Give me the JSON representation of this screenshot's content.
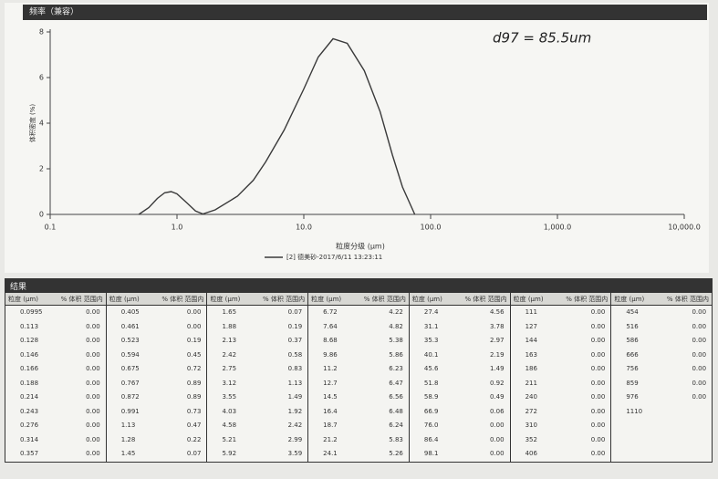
{
  "chart_data": {
    "type": "line",
    "title": "频率（兼容）",
    "ylabel": "体积密度 (%)",
    "xlabel": "粒度分级 (μm)",
    "annotation": "d97 = 85.5um",
    "xlog": true,
    "xlim": [
      0.1,
      10000
    ],
    "xticks": [
      0.1,
      {
        "value": 1,
        "label": "1.0"
      },
      {
        "value": 10,
        "label": "10.0"
      },
      {
        "value": 100,
        "label": "100.0"
      },
      {
        "value": 1000,
        "label": "1,000.0"
      },
      {
        "value": 10000,
        "label": "10,000.0"
      }
    ],
    "ylim": [
      0,
      8
    ],
    "yticks": [
      0,
      2,
      4,
      6,
      8
    ],
    "x": [
      0.5,
      0.6,
      0.7,
      0.8,
      0.9,
      1.0,
      1.2,
      1.4,
      1.6,
      2,
      3,
      4,
      5,
      7,
      10,
      13,
      17,
      22,
      30,
      40,
      50,
      60,
      75
    ],
    "series": [
      {
        "name": "[2] 德美砂-2017/6/11 13:23:11",
        "color": "#3a3a3a",
        "values": [
          0,
          0.3,
          0.7,
          0.95,
          1.0,
          0.9,
          0.5,
          0.15,
          0.02,
          0.2,
          0.8,
          1.5,
          2.3,
          3.7,
          5.5,
          6.9,
          7.7,
          7.5,
          6.3,
          4.5,
          2.6,
          1.2,
          0
        ]
      }
    ]
  },
  "table": {
    "title": "结果",
    "headers": [
      "粒度 (μm)",
      "% 体积 范围内"
    ],
    "columns": [
      [
        [
          "0.0995",
          "0.00"
        ],
        [
          "0.113",
          "0.00"
        ],
        [
          "0.128",
          "0.00"
        ],
        [
          "0.146",
          "0.00"
        ],
        [
          "0.166",
          "0.00"
        ],
        [
          "0.188",
          "0.00"
        ],
        [
          "0.214",
          "0.00"
        ],
        [
          "0.243",
          "0.00"
        ],
        [
          "0.276",
          "0.00"
        ],
        [
          "0.314",
          "0.00"
        ],
        [
          "0.357",
          "0.00"
        ]
      ],
      [
        [
          "0.405",
          "0.00"
        ],
        [
          "0.461",
          "0.00"
        ],
        [
          "0.523",
          "0.19"
        ],
        [
          "0.594",
          "0.45"
        ],
        [
          "0.675",
          "0.72"
        ],
        [
          "0.767",
          "0.89"
        ],
        [
          "0.872",
          "0.89"
        ],
        [
          "0.991",
          "0.73"
        ],
        [
          "1.13",
          "0.47"
        ],
        [
          "1.28",
          "0.22"
        ],
        [
          "1.45",
          "0.07"
        ]
      ],
      [
        [
          "1.65",
          "0.07"
        ],
        [
          "1.88",
          "0.19"
        ],
        [
          "2.13",
          "0.37"
        ],
        [
          "2.42",
          "0.58"
        ],
        [
          "2.75",
          "0.83"
        ],
        [
          "3.12",
          "1.13"
        ],
        [
          "3.55",
          "1.49"
        ],
        [
          "4.03",
          "1.92"
        ],
        [
          "4.58",
          "2.42"
        ],
        [
          "5.21",
          "2.99"
        ],
        [
          "5.92",
          "3.59"
        ]
      ],
      [
        [
          "6.72",
          "4.22"
        ],
        [
          "7.64",
          "4.82"
        ],
        [
          "8.68",
          "5.38"
        ],
        [
          "9.86",
          "5.86"
        ],
        [
          "11.2",
          "6.23"
        ],
        [
          "12.7",
          "6.47"
        ],
        [
          "14.5",
          "6.56"
        ],
        [
          "16.4",
          "6.48"
        ],
        [
          "18.7",
          "6.24"
        ],
        [
          "21.2",
          "5.83"
        ],
        [
          "24.1",
          "5.26"
        ]
      ],
      [
        [
          "27.4",
          "4.56"
        ],
        [
          "31.1",
          "3.78"
        ],
        [
          "35.3",
          "2.97"
        ],
        [
          "40.1",
          "2.19"
        ],
        [
          "45.6",
          "1.49"
        ],
        [
          "51.8",
          "0.92"
        ],
        [
          "58.9",
          "0.49"
        ],
        [
          "66.9",
          "0.06"
        ],
        [
          "76.0",
          "0.00"
        ],
        [
          "86.4",
          "0.00"
        ],
        [
          "98.1",
          "0.00"
        ]
      ],
      [
        [
          "111",
          "0.00"
        ],
        [
          "127",
          "0.00"
        ],
        [
          "144",
          "0.00"
        ],
        [
          "163",
          "0.00"
        ],
        [
          "186",
          "0.00"
        ],
        [
          "211",
          "0.00"
        ],
        [
          "240",
          "0.00"
        ],
        [
          "272",
          "0.00"
        ],
        [
          "310",
          "0.00"
        ],
        [
          "352",
          "0.00"
        ],
        [
          "406",
          "0.00"
        ]
      ],
      [
        [
          "454",
          "0.00"
        ],
        [
          "516",
          "0.00"
        ],
        [
          "586",
          "0.00"
        ],
        [
          "666",
          "0.00"
        ],
        [
          "756",
          "0.00"
        ],
        [
          "859",
          "0.00"
        ],
        [
          "976",
          "0.00"
        ],
        [
          "1110"
        ]
      ]
    ]
  }
}
